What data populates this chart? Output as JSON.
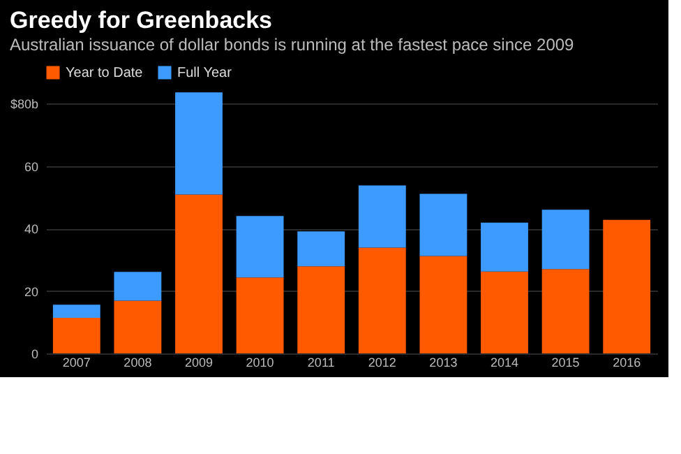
{
  "chart_data": {
    "type": "bar",
    "title": "Greedy for Greenbacks",
    "subtitle": "Australian issuance of dollar bonds is running at the fastest pace since 2009",
    "categories": [
      "2007",
      "2008",
      "2009",
      "2010",
      "2011",
      "2012",
      "2013",
      "2014",
      "2015",
      "2016"
    ],
    "stacked": true,
    "series": [
      {
        "name": "Year to Date",
        "color": "#ff5a00",
        "values": [
          11.4,
          16.9,
          50.9,
          24.3,
          27.9,
          33.9,
          31.2,
          26.2,
          27.0,
          42.8
        ]
      },
      {
        "name": "Full Year",
        "color": "#3d9bff",
        "values": [
          4.2,
          9.2,
          32.7,
          19.7,
          11.2,
          19.9,
          19.9,
          15.7,
          19.0,
          null
        ]
      }
    ],
    "ylim": [
      0,
      85
    ],
    "yticks": [
      0,
      20,
      40,
      60,
      {
        "value": 80,
        "label": "$80b"
      }
    ],
    "grid": "y",
    "legend": "top left"
  }
}
